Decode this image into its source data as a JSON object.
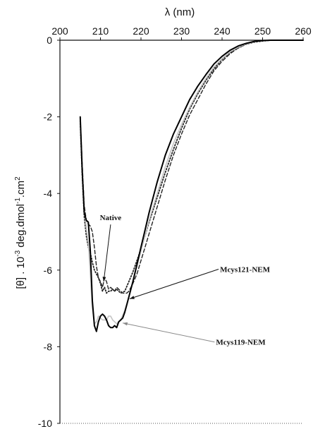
{
  "chart_data": {
    "type": "line",
    "xlabel": "λ (nm)",
    "ylabel_parts": [
      "[θ] . 10",
      "-3",
      " deg.dmol",
      "-1",
      ".cm",
      "2"
    ],
    "xlim": [
      200,
      260
    ],
    "ylim": [
      -10,
      0
    ],
    "x_axis_position": "top",
    "x_ticks": [
      200,
      210,
      220,
      230,
      240,
      250,
      260
    ],
    "y_ticks": [
      0,
      -2,
      -4,
      -6,
      -8,
      -10
    ],
    "grid": false,
    "series": [
      {
        "name": "Native",
        "style": "dotted",
        "color": "#222222",
        "x": [
          205,
          205.5,
          206,
          206.5,
          207,
          207.5,
          208,
          208.5,
          209,
          209.5,
          210,
          210.5,
          211,
          211.5,
          212,
          212.5,
          213,
          213.5,
          214,
          214.5,
          215,
          216,
          217,
          218,
          219,
          220,
          221,
          222,
          224,
          226,
          228,
          230,
          232,
          234,
          236,
          238,
          240,
          242,
          244,
          246,
          248,
          250,
          252,
          254,
          256,
          258,
          260
        ],
        "y": [
          -2.1,
          -3.5,
          -4.6,
          -5.1,
          -5.4,
          -5.55,
          -5.8,
          -6.0,
          -6.1,
          -6.2,
          -6.35,
          -6.55,
          -6.45,
          -6.6,
          -6.55,
          -6.55,
          -6.5,
          -6.55,
          -6.5,
          -6.55,
          -6.6,
          -6.55,
          -6.3,
          -6.05,
          -5.75,
          -5.45,
          -5.1,
          -4.75,
          -4.1,
          -3.45,
          -2.85,
          -2.3,
          -1.8,
          -1.4,
          -1.05,
          -0.75,
          -0.5,
          -0.32,
          -0.2,
          -0.1,
          -0.05,
          -0.02,
          0,
          0,
          0,
          0,
          0
        ]
      },
      {
        "name": "Mcys121-NEM",
        "style": "dashed",
        "color": "#222222",
        "x": [
          205,
          205.5,
          206,
          206.5,
          207,
          207.5,
          208,
          208.5,
          209,
          209.5,
          210,
          210.5,
          211,
          211.5,
          212,
          212.5,
          213,
          213.5,
          214,
          214.5,
          215,
          215.5,
          216,
          216.5,
          217,
          218,
          219,
          220,
          221,
          222,
          224,
          226,
          228,
          230,
          232,
          234,
          236,
          238,
          240,
          242,
          244,
          246,
          248,
          250,
          252,
          254,
          256,
          258,
          260
        ],
        "y": [
          -2.0,
          -3.2,
          -4.3,
          -4.7,
          -4.8,
          -4.85,
          -5.0,
          -5.4,
          -5.9,
          -6.2,
          -6.3,
          -6.45,
          -6.2,
          -6.3,
          -6.5,
          -6.45,
          -6.5,
          -6.55,
          -6.45,
          -6.5,
          -6.55,
          -6.6,
          -6.6,
          -6.6,
          -6.55,
          -6.35,
          -6.1,
          -5.75,
          -5.4,
          -5.05,
          -4.35,
          -3.65,
          -3.0,
          -2.45,
          -1.95,
          -1.55,
          -1.15,
          -0.8,
          -0.55,
          -0.35,
          -0.2,
          -0.1,
          -0.04,
          -0.01,
          0,
          0,
          0,
          0,
          0
        ]
      },
      {
        "name": "Mcys119-NEM",
        "style": "solid",
        "color": "#c4c4c4",
        "x": [
          205,
          205.5,
          206,
          206.5,
          207,
          207.5,
          208,
          208.5,
          209,
          209.5,
          210,
          210.5,
          211,
          211.5,
          212,
          212.5,
          213,
          213.5,
          214,
          214.5,
          215,
          216,
          217,
          218,
          219,
          220,
          221,
          222,
          224,
          226,
          228,
          230,
          232,
          234,
          236,
          238,
          240,
          242,
          244,
          246,
          248,
          250,
          252,
          254,
          256,
          258,
          260
        ],
        "y": [
          -2.0,
          -3.3,
          -4.4,
          -4.9,
          -5.3,
          -6.1,
          -7.0,
          -7.4,
          -7.35,
          -7.2,
          -7.25,
          -7.3,
          -7.3,
          -7.3,
          -7.2,
          -7.2,
          -7.3,
          -7.35,
          -7.4,
          -7.35,
          -7.3,
          -7.05,
          -6.7,
          -6.3,
          -5.9,
          -5.5,
          -5.1,
          -4.7,
          -4.0,
          -3.3,
          -2.7,
          -2.2,
          -1.75,
          -1.35,
          -1.0,
          -0.7,
          -0.48,
          -0.3,
          -0.18,
          -0.09,
          -0.04,
          -0.01,
          0,
          0,
          0,
          0,
          0
        ]
      },
      {
        "name": "",
        "style": "solid",
        "color": "#000000",
        "x": [
          205,
          205.5,
          206,
          206.5,
          207,
          207.5,
          208,
          208.5,
          209,
          209.5,
          210,
          210.5,
          211,
          211.5,
          212,
          212.5,
          213,
          213.5,
          214,
          214.5,
          215,
          215.5,
          216,
          216.5,
          217,
          218,
          219,
          220,
          221,
          222,
          224,
          226,
          228,
          230,
          232,
          234,
          236,
          238,
          240,
          242,
          244,
          246,
          248,
          250,
          252,
          254,
          256,
          258,
          260
        ],
        "y": [
          -2.0,
          -3.4,
          -4.5,
          -4.7,
          -4.75,
          -5.5,
          -6.8,
          -7.45,
          -7.6,
          -7.35,
          -7.2,
          -7.15,
          -7.2,
          -7.3,
          -7.45,
          -7.5,
          -7.5,
          -7.45,
          -7.5,
          -7.35,
          -7.3,
          -7.25,
          -7.1,
          -6.9,
          -6.7,
          -6.3,
          -5.85,
          -5.4,
          -4.95,
          -4.5,
          -3.7,
          -3.0,
          -2.45,
          -2.0,
          -1.55,
          -1.2,
          -0.9,
          -0.62,
          -0.42,
          -0.26,
          -0.15,
          -0.08,
          -0.03,
          -0.01,
          0,
          0,
          0,
          0,
          0
        ]
      }
    ],
    "annotations": [
      {
        "text": "Native",
        "x": 212.5,
        "y": -4.7,
        "target": [
          210.8,
          -6.3
        ]
      },
      {
        "text": "Mcys121-NEM",
        "x": 239.5,
        "y": -6.05,
        "target": [
          217.2,
          -6.75
        ]
      },
      {
        "text": "Mcys119-NEM",
        "x": 238.5,
        "y": -7.95,
        "target": [
          215.5,
          -7.38
        ]
      }
    ]
  }
}
